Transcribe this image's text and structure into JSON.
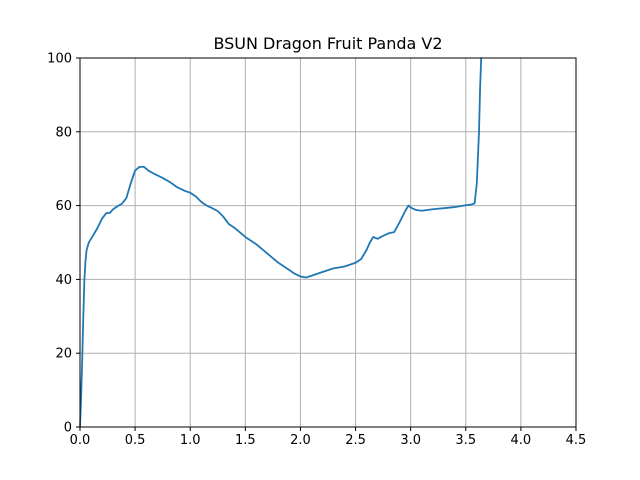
{
  "chart_data": {
    "type": "line",
    "title": "BSUN Dragon Fruit Panda V2",
    "xlabel": "",
    "ylabel": "",
    "xlim": [
      0,
      4.5
    ],
    "ylim": [
      0,
      100
    ],
    "xticks": [
      0.0,
      0.5,
      1.0,
      1.5,
      2.0,
      2.5,
      3.0,
      3.5,
      4.0,
      4.5
    ],
    "xtick_labels": [
      "0.0",
      "0.5",
      "1.0",
      "1.5",
      "2.0",
      "2.5",
      "3.0",
      "3.5",
      "4.0",
      "4.5"
    ],
    "yticks": [
      0,
      20,
      40,
      60,
      80,
      100
    ],
    "ytick_labels": [
      "0",
      "20",
      "40",
      "60",
      "80",
      "100"
    ],
    "grid": true,
    "colors": {
      "series": "#1f77b4"
    },
    "series": [
      {
        "x": [
          0.0,
          0.01,
          0.02,
          0.03,
          0.04,
          0.05,
          0.06,
          0.08,
          0.1,
          0.13,
          0.16,
          0.2,
          0.24,
          0.27,
          0.3,
          0.35,
          0.38,
          0.42,
          0.46,
          0.5,
          0.54,
          0.58,
          0.62,
          0.68,
          0.75,
          0.82,
          0.88,
          0.95,
          1.0,
          1.05,
          1.1,
          1.15,
          1.2,
          1.25,
          1.3,
          1.35,
          1.4,
          1.5,
          1.6,
          1.7,
          1.8,
          1.9,
          1.95,
          2.0,
          2.05,
          2.1,
          2.2,
          2.3,
          2.4,
          2.5,
          2.55,
          2.6,
          2.63,
          2.66,
          2.7,
          2.75,
          2.8,
          2.85,
          2.9,
          2.95,
          2.98,
          3.0,
          3.02,
          3.05,
          3.1,
          3.2,
          3.3,
          3.4,
          3.5,
          3.55,
          3.58,
          3.6,
          3.62,
          3.63,
          3.64
        ],
        "y": [
          0,
          8,
          18,
          30,
          40,
          45,
          48,
          50,
          51,
          52.5,
          54,
          56.5,
          58,
          58,
          59,
          60,
          60.5,
          62,
          66,
          69.5,
          70.5,
          70.5,
          69.5,
          68.5,
          67.5,
          66.3,
          65,
          64,
          63.5,
          62.5,
          61,
          60,
          59.3,
          58.5,
          57,
          55,
          54,
          51.5,
          49.5,
          47,
          44.5,
          42.5,
          41.5,
          40.8,
          40.5,
          41,
          42,
          43,
          43.5,
          44.5,
          45.5,
          48,
          50,
          51.5,
          51,
          51.8,
          52.5,
          52.8,
          55.5,
          58.5,
          60,
          59.5,
          59.2,
          58.8,
          58.6,
          59,
          59.3,
          59.6,
          60.1,
          60.3,
          60.6,
          66,
          80,
          92,
          100
        ]
      }
    ]
  }
}
